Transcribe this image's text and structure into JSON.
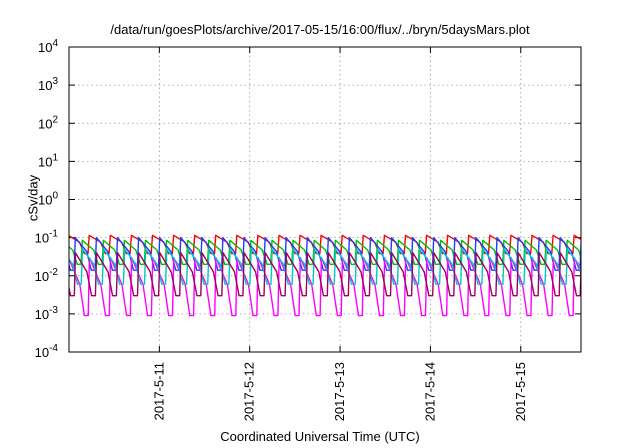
{
  "chart_data": {
    "type": "line",
    "title": "/data/run/goesPlots/archive/2017-05-15/16:00/flux/../bryn/5daysMars.plot",
    "xlabel": "Coordinated Universal Time (UTC)",
    "ylabel": "cSv/day",
    "y_scale": "log",
    "ylim": [
      0.0001,
      10000
    ],
    "y_ticks": [
      {
        "base": "10",
        "exp": "-4"
      },
      {
        "base": "10",
        "exp": "-3"
      },
      {
        "base": "10",
        "exp": "-2"
      },
      {
        "base": "10",
        "exp": "-1"
      },
      {
        "base": "10",
        "exp": "0"
      },
      {
        "base": "10",
        "exp": "1"
      },
      {
        "base": "10",
        "exp": "2"
      },
      {
        "base": "10",
        "exp": "3"
      },
      {
        "base": "10",
        "exp": "4"
      }
    ],
    "xlim": [
      "2017-05-10 00:00",
      "2017-05-15 16:00"
    ],
    "x_ticks": [
      "2017-5-11",
      "2017-5-12",
      "2017-5-13",
      "2017-5-14",
      "2017-5-15"
    ],
    "grid": true,
    "sawtooth_period_hours": 5.6,
    "series": [
      {
        "color": "#ff0000",
        "peak": 0.115,
        "trough": 0.038
      },
      {
        "color": "#00c000",
        "peak": 0.085,
        "trough": 0.02
      },
      {
        "color": "#1e3cff",
        "peak": 0.1,
        "trough": 0.014
      },
      {
        "color": "#ff00ff",
        "peak": 0.03,
        "trough": 0.0009
      },
      {
        "color": "#00c8c8",
        "peak": 0.05,
        "trough": 0.006
      },
      {
        "color": "#a00060",
        "peak": 0.04,
        "trough": 0.003
      }
    ]
  }
}
